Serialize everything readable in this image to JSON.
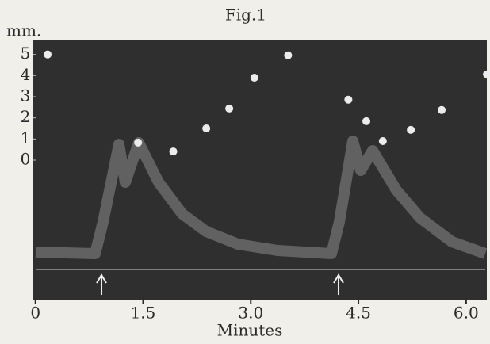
{
  "chart_data": {
    "type": "scatter",
    "title": "Fig.1",
    "y_label": "mm.",
    "x_label": "Minutes",
    "series": [
      {
        "color": "#ececec",
        "x": [
          0.17,
          1.43,
          1.92,
          2.38,
          2.7,
          3.05,
          3.52,
          4.36,
          4.61,
          4.84,
          5.23,
          5.66,
          6.29
        ],
        "values": [
          5.0,
          0.83,
          0.41,
          1.5,
          2.44,
          3.9,
          4.96,
          2.86,
          1.84,
          0.9,
          1.43,
          2.37,
          4.06
        ]
      }
    ],
    "xlim": [
      -0.03,
      6.3
    ],
    "xticks": [
      0,
      1.5,
      {
        "value": 3,
        "label": "3.0"
      },
      4.5,
      {
        "value": 6,
        "label": "6.0"
      }
    ],
    "ylim": [
      -6.6,
      5.7
    ],
    "yticks": [
      0,
      1,
      2,
      3,
      4,
      5
    ]
  }
}
